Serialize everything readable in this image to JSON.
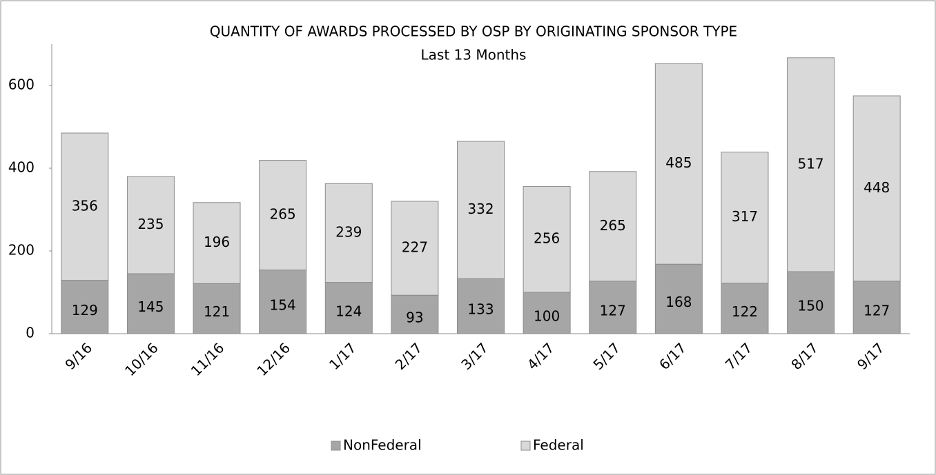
{
  "chart_data": {
    "type": "stacked_bar",
    "title": "QUANTITY OF AWARDS PROCESSED BY OSP BY ORIGINATING SPONSOR TYPE",
    "subtitle": "Last 13 Months",
    "categories": [
      "9/16",
      "10/16",
      "11/16",
      "12/16",
      "1/17",
      "2/17",
      "3/17",
      "4/17",
      "5/17",
      "6/17",
      "7/17",
      "8/17",
      "9/17"
    ],
    "series": [
      {
        "name": "NonFederal",
        "color": "#a6a6a6",
        "values": [
          129,
          145,
          121,
          154,
          124,
          93,
          133,
          100,
          127,
          168,
          122,
          150,
          127
        ]
      },
      {
        "name": "Federal",
        "color": "#d9d9d9",
        "values": [
          356,
          235,
          196,
          265,
          239,
          227,
          332,
          256,
          265,
          485,
          317,
          517,
          448
        ]
      }
    ],
    "ylim": [
      0,
      700
    ],
    "yticks": [
      0,
      200,
      400,
      600
    ],
    "grid": false,
    "legend": "bottom"
  }
}
